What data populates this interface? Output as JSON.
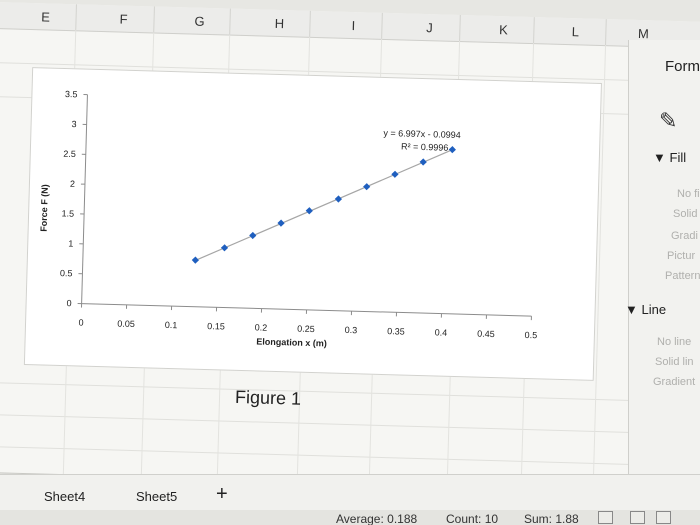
{
  "spreadsheet": {
    "columns": [
      "E",
      "F",
      "G",
      "H",
      "I",
      "J",
      "K",
      "L",
      "M"
    ],
    "caption": "Figure 1"
  },
  "chart_data": {
    "type": "scatter",
    "title": "",
    "xlabel": "Elongation x (m)",
    "ylabel": "Force F (N)",
    "xlim": [
      0,
      0.5
    ],
    "ylim": [
      0,
      3.5
    ],
    "x_ticks": [
      "0",
      "0.05",
      "0.1",
      "0.15",
      "0.2",
      "0.25",
      "0.3",
      "0.35",
      "0.4",
      "0.45",
      "0.5"
    ],
    "y_ticks": [
      "0",
      "0.5",
      "1",
      "1.5",
      "2",
      "2.5",
      "3",
      "3.5"
    ],
    "series": [
      {
        "x": [
          0.125,
          0.157,
          0.188,
          0.219,
          0.25,
          0.282,
          0.313,
          0.344,
          0.375,
          0.407
        ],
        "y": [
          0.78,
          1.0,
          1.22,
          1.44,
          1.66,
          1.87,
          2.09,
          2.31,
          2.53,
          2.75
        ],
        "marker": "diamond",
        "color": "#1f5fbf"
      }
    ],
    "trendline": {
      "type": "linear",
      "color": "#a6a6a6",
      "equation": "y = 6.997x - 0.0994",
      "r_squared": "R² = 0.9996"
    },
    "grid": false,
    "legend": "none"
  },
  "format_panel": {
    "title": "Form",
    "fill_label": "Fill",
    "fill_options": [
      "No fi",
      "Solid",
      "Gradi",
      "Pictur",
      "Pattern"
    ],
    "line_label": "Line",
    "line_options": [
      "No line",
      "Solid lin",
      "Gradient"
    ]
  },
  "sheet_tabs": [
    "Sheet4",
    "Sheet5"
  ],
  "add_sheet_symbol": "+",
  "status_bar": {
    "average": "Average: 0.188",
    "count": "Count: 10",
    "sum": "Sum: 1.88"
  },
  "colors": {
    "marker": "#1f5fbf",
    "trendline": "#a6a6a6"
  }
}
